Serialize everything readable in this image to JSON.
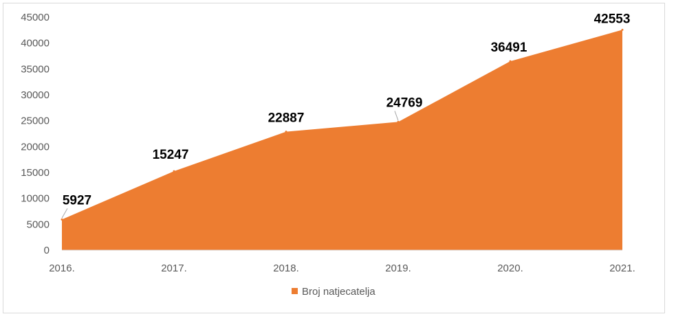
{
  "chart_data": {
    "type": "area",
    "categories": [
      "2016.",
      "2017.",
      "2018.",
      "2019.",
      "2020.",
      "2021."
    ],
    "series": [
      {
        "name": "Broj natjecatelja",
        "values": [
          5927,
          15247,
          22887,
          24769,
          36491,
          42553
        ],
        "color": "#ED7D31"
      }
    ],
    "data_labels": [
      "5927",
      "15247",
      "22887",
      "24769",
      "36491",
      "42553"
    ],
    "y_ticks": [
      "0",
      "5000",
      "10000",
      "15000",
      "20000",
      "25000",
      "30000",
      "35000",
      "40000",
      "45000"
    ],
    "ylim": [
      0,
      45000
    ],
    "title": "",
    "xlabel": "",
    "ylabel": "",
    "grid": false,
    "legend_position": "bottom"
  }
}
